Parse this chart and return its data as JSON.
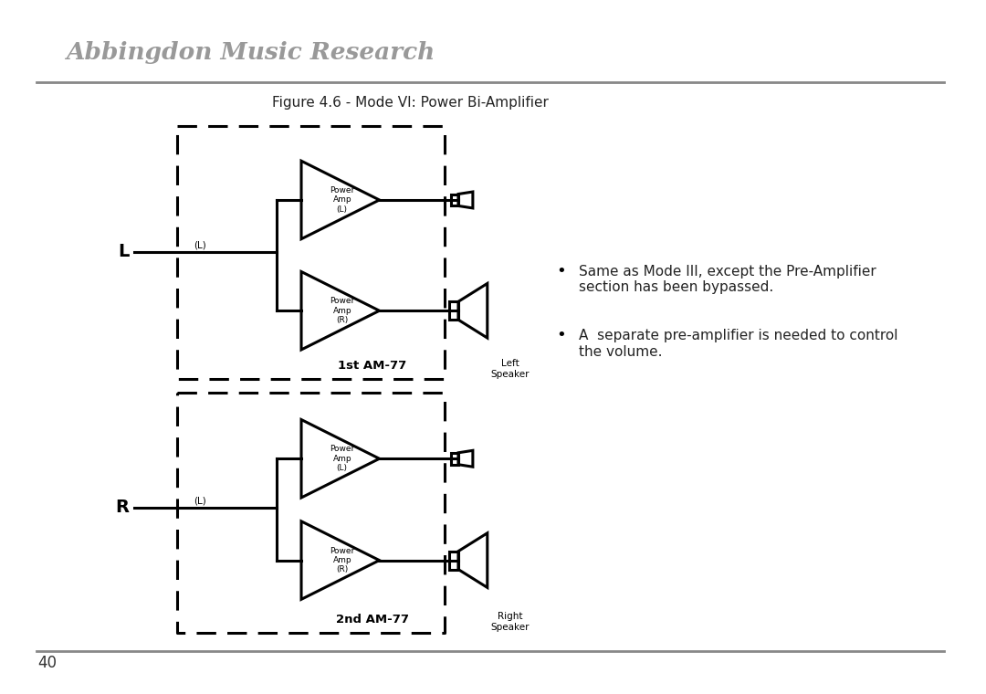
{
  "bg_color": "#ffffff",
  "title_text": "Figure 4.6 - Mode VI: Power Bi-Amplifier",
  "header_text": "Abbingdon Music Research",
  "page_number": "40",
  "bullet1": "Same as Mode III, except the Pre-Amplifier\nsection has been bypassed.",
  "bullet2": "A  separate pre-amplifier is needed to control\nthe volume.",
  "line_color": "#000000",
  "label_color": "#333333",
  "top_section_label": "1st AM-77",
  "bottom_section_label": "2nd AM-77",
  "left_label_top": "L",
  "left_label_bottom": "R",
  "input_label_top": "(L)",
  "input_label_bot": "(L)",
  "left_speaker_label": "Left\nSpeaker",
  "right_speaker_label": "Right\nSpeaker",
  "amp_top_L": "Power\nAmp\n(L)",
  "amp_top_R": "Power\nAmp\n(R)",
  "amp_bot_L": "Power\nAmp\n(L)",
  "amp_bot_R": "Power\nAmp\n(R)",
  "header_color": "#888888",
  "text_color": "#222222",
  "page_num_color": "#333333"
}
